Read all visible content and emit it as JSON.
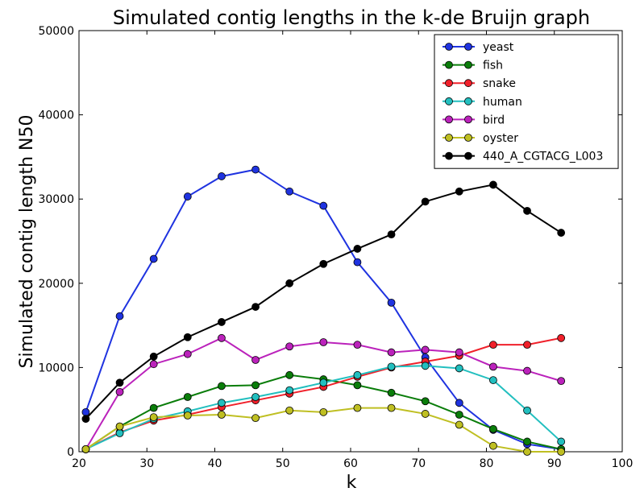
{
  "chart_data": {
    "type": "line",
    "title": "Simulated contig lengths in the k-de Bruijn graph",
    "xlabel": "k",
    "ylabel": "Simulated contig length N50",
    "xlim": [
      20,
      100
    ],
    "ylim": [
      0,
      50000
    ],
    "xticks": [
      20,
      30,
      40,
      50,
      60,
      70,
      80,
      90,
      100
    ],
    "yticks": [
      0,
      10000,
      20000,
      30000,
      40000,
      50000
    ],
    "xtick_labels": [
      "20",
      "30",
      "40",
      "50",
      "60",
      "70",
      "80",
      "90",
      "100"
    ],
    "ytick_labels": [
      "0",
      "10000",
      "20000",
      "30000",
      "40000",
      "50000"
    ],
    "grid": false,
    "legend_position": "top-right",
    "x": [
      21,
      26,
      31,
      36,
      41,
      46,
      51,
      56,
      61,
      66,
      71,
      76,
      81,
      86,
      91
    ],
    "series": [
      {
        "name": "yeast",
        "color": "#1f33e0",
        "values": [
          4700,
          16100,
          22900,
          30300,
          32700,
          33500,
          30900,
          29200,
          22500,
          17700,
          11200,
          5800,
          2600,
          900,
          300
        ]
      },
      {
        "name": "fish",
        "color": "#0a7d0a",
        "values": [
          300,
          3000,
          5200,
          6500,
          7800,
          7900,
          9100,
          8600,
          7900,
          7000,
          6000,
          4400,
          2700,
          1200,
          300
        ]
      },
      {
        "name": "snake",
        "color": "#f0202a",
        "values": [
          300,
          2300,
          3700,
          4400,
          5300,
          6100,
          6900,
          7700,
          8900,
          10000,
          10700,
          11400,
          12700,
          12700,
          13500
        ]
      },
      {
        "name": "human",
        "color": "#22bfbf",
        "values": [
          300,
          2200,
          3900,
          4800,
          5800,
          6500,
          7300,
          8200,
          9100,
          10100,
          10200,
          9900,
          8500,
          4900,
          1200
        ]
      },
      {
        "name": "bird",
        "color": "#bb22bb",
        "values": [
          300,
          7100,
          10400,
          11600,
          13500,
          10900,
          12500,
          13000,
          12700,
          11800,
          12100,
          11800,
          10100,
          9600,
          8400
        ]
      },
      {
        "name": "oyster",
        "color": "#bfbf22",
        "values": [
          300,
          3000,
          4100,
          4300,
          4400,
          4000,
          4900,
          4700,
          5200,
          5200,
          4500,
          3200,
          700,
          0,
          0
        ]
      },
      {
        "name": "440_A_CGTACG_L003",
        "color": "#000000",
        "values": [
          3900,
          8200,
          11300,
          13600,
          15400,
          17200,
          20000,
          22300,
          24100,
          25800,
          29700,
          30900,
          31700,
          28600,
          26000
        ]
      }
    ]
  }
}
